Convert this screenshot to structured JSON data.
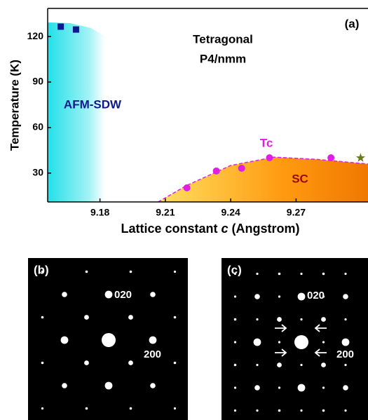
{
  "chart_data": {
    "type": "scatter",
    "panel_label": "(a)",
    "xlabel": "Lattice constant",
    "xlabel_variable": "c",
    "xlabel_unit": "(Angstrom)",
    "ylabel": "Temperature (K)",
    "annotations": [
      "Tetragonal",
      "P4/nmm",
      "SC"
    ],
    "xlim": [
      9.156,
      9.303
    ],
    "ylim": [
      11,
      138.5
    ],
    "xticks": [
      9.18,
      9.21,
      9.24,
      9.27
    ],
    "yticks": [
      30,
      60,
      90,
      120
    ],
    "series": [
      {
        "name": "AFM-SDW",
        "color": "#0c1a8c",
        "marker": "square",
        "x": [
          9.162,
          9.169
        ],
        "values": [
          126.5,
          124.6
        ]
      },
      {
        "name": "Tc",
        "color": "#e020e0",
        "marker": "circle",
        "x": [
          9.2199,
          9.2334,
          9.245,
          9.2578,
          9.286
        ],
        "values": [
          20.3,
          31.4,
          33.2,
          40.1,
          40.1
        ]
      },
      {
        "color": "#6b7a1a",
        "marker": "star",
        "x": [
          9.2996
        ],
        "values": [
          40
        ]
      }
    ],
    "sc_boundary": {
      "x": [
        9.2067,
        9.22,
        9.24,
        9.26,
        9.28,
        9.303
      ],
      "y": [
        11,
        22,
        35,
        40.5,
        39,
        36
      ]
    }
  },
  "panels": [
    {
      "label": "(b)",
      "spots": [
        "020",
        "200"
      ]
    },
    {
      "label": "(c)",
      "spots": [
        "020",
        "200"
      ]
    }
  ]
}
